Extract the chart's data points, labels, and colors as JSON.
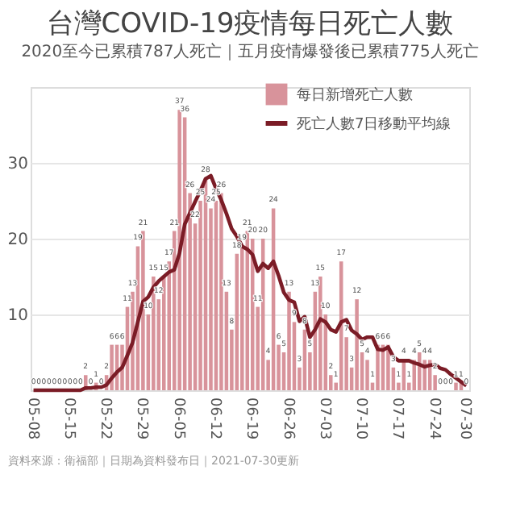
{
  "chart_data": {
    "type": "bar",
    "title": "台灣COVID-19疫情每日死亡人數",
    "subtitle": "2020至今已累積787人死亡｜五月疫情爆發後已累積775人死亡",
    "categories": [
      "05-08",
      null,
      null,
      null,
      null,
      null,
      null,
      "05-15",
      null,
      null,
      null,
      null,
      null,
      null,
      "05-22",
      null,
      null,
      null,
      null,
      null,
      null,
      "05-29",
      null,
      null,
      null,
      null,
      null,
      null,
      "06-05",
      null,
      null,
      null,
      null,
      null,
      null,
      "06-12",
      null,
      null,
      null,
      null,
      null,
      null,
      "06-19",
      null,
      null,
      null,
      null,
      null,
      null,
      "06-26",
      null,
      null,
      null,
      null,
      null,
      null,
      "07-03",
      null,
      null,
      null,
      null,
      null,
      null,
      "07-10",
      null,
      null,
      null,
      null,
      null,
      null,
      "07-17",
      null,
      null,
      null,
      null,
      null,
      null,
      "07-24",
      null,
      null,
      null,
      null,
      null,
      "07-30"
    ],
    "series": [
      {
        "name": "每日新增死亡人數",
        "color": "#d8939b",
        "values": [
          0,
          0,
          0,
          0,
          0,
          0,
          0,
          0,
          0,
          0,
          2,
          0,
          1,
          0,
          2,
          6,
          6,
          6,
          11,
          13,
          19,
          21,
          10,
          15,
          12,
          15,
          17,
          21,
          37,
          36,
          26,
          22,
          25,
          28,
          24,
          25,
          26,
          13,
          8,
          18,
          19,
          21,
          20,
          11,
          20,
          4,
          24,
          6,
          5,
          13,
          9,
          3,
          8,
          5,
          13,
          15,
          10,
          2,
          1,
          17,
          7,
          3,
          12,
          5,
          4,
          1,
          6,
          6,
          6,
          3,
          1,
          4,
          1,
          4,
          5,
          4,
          4,
          2,
          0,
          0,
          0,
          1,
          1,
          0
        ],
        "value_labels": [
          "0",
          "0",
          "0",
          "0",
          "0",
          "0",
          "0",
          "0",
          "0",
          "0",
          "2",
          "0",
          "1",
          "0",
          "2",
          "6",
          "6",
          "6",
          "11",
          "13",
          "19",
          "21",
          "10",
          "15",
          "12",
          "15",
          "17",
          "21",
          "37",
          "36",
          "26",
          "22",
          "25",
          "28",
          "24",
          "25",
          "26",
          "13",
          "8",
          "18",
          "19",
          "21",
          "20",
          "11",
          "20",
          "4",
          "24",
          "6",
          "5",
          "13",
          "9",
          "3",
          "8",
          "5",
          "13",
          "15",
          "10",
          "2",
          "1",
          "17",
          "7",
          "3",
          "12",
          "5",
          "4",
          "1",
          "6",
          "6",
          "6",
          "3",
          "1",
          "4",
          "1",
          "4",
          "5",
          "4",
          "4",
          "2",
          "0",
          "0",
          "0",
          "1",
          "1",
          "0"
        ]
      },
      {
        "name": "死亡人數7日移動平均線",
        "type": "line",
        "color": "#7b1c26",
        "values": [
          0,
          0,
          0,
          0,
          0,
          0,
          0,
          0,
          0,
          0,
          0.3,
          0.3,
          0.4,
          0.4,
          0.7,
          1.6,
          2.4,
          3.0,
          4.6,
          6.3,
          9.0,
          11.7,
          12.3,
          13.6,
          14.4,
          15.0,
          15.6,
          15.9,
          18.1,
          21.9,
          23.4,
          24.9,
          26.3,
          27.9,
          28.3,
          26.6,
          25.1,
          23.3,
          21.3,
          20.3,
          19.0,
          18.6,
          17.9,
          15.7,
          16.7,
          16.1,
          17.0,
          15.1,
          12.9,
          11.9,
          11.6,
          9.1,
          9.7,
          7.0,
          8.0,
          9.4,
          9.0,
          8.0,
          7.7,
          9.0,
          9.3,
          7.9,
          7.4,
          6.7,
          7.0,
          7.0,
          5.4,
          5.3,
          5.7,
          4.4,
          3.9,
          3.9,
          3.9,
          3.6,
          3.4,
          3.1,
          3.3,
          3.4,
          2.9,
          2.7,
          2.1,
          1.6,
          1.1,
          0.6
        ]
      }
    ],
    "ylim": [
      0,
      40
    ],
    "yticks": [
      10,
      20,
      30
    ],
    "grid": "y",
    "legend": "top right",
    "annotations": [
      "資料來源：衛福部｜日期為資料發布日｜2021-07-30更新"
    ]
  }
}
